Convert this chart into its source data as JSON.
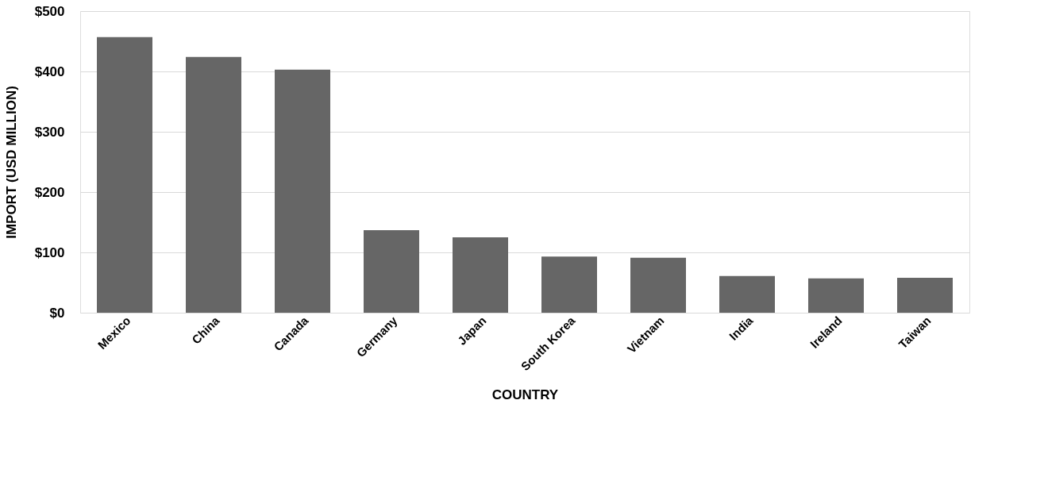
{
  "chart_data": {
    "type": "bar",
    "categories": [
      "Mexico",
      "China",
      "Canada",
      "Germany",
      "Japan",
      "South Korea",
      "Vietnam",
      "India",
      "Ireland",
      "Taiwan"
    ],
    "values": [
      457,
      424,
      403,
      137,
      125,
      93,
      91,
      61,
      57,
      58
    ],
    "color": "#666666",
    "xlabel": "COUNTRY",
    "ylabel": "IMPORT (USD MILLION)",
    "ylim": [
      0,
      500
    ],
    "yticks": [
      {
        "value": 0,
        "label": "$0"
      },
      {
        "value": 100,
        "label": "$100"
      },
      {
        "value": 200,
        "label": "$200"
      },
      {
        "value": 300,
        "label": "$300"
      },
      {
        "value": 400,
        "label": "$400"
      },
      {
        "value": 500,
        "label": "$500"
      }
    ],
    "grid": "y"
  }
}
